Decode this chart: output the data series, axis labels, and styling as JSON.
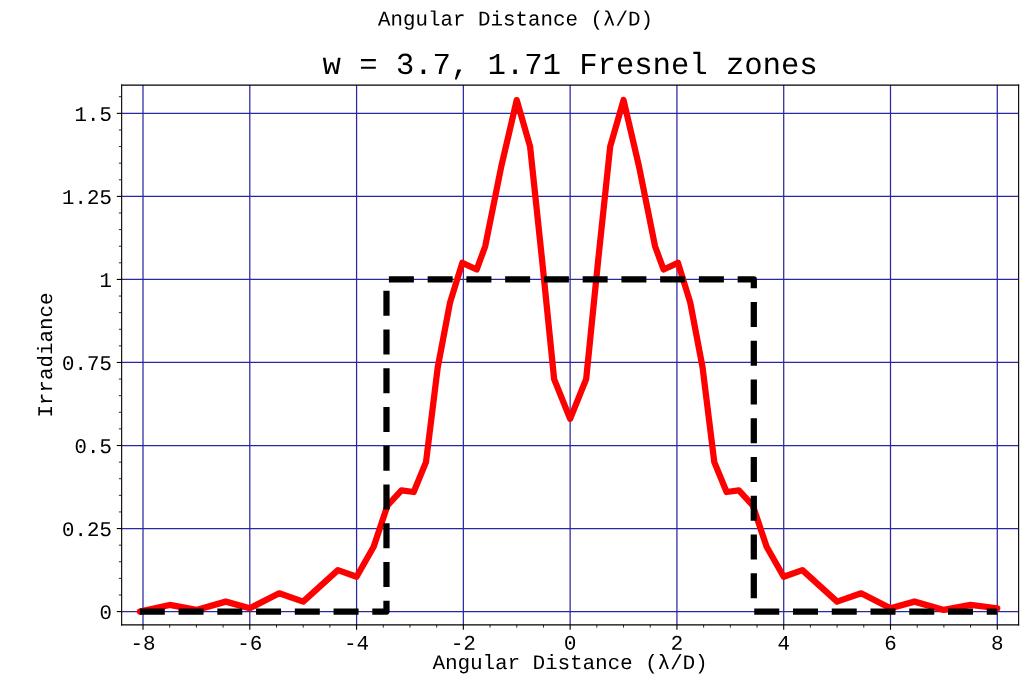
{
  "chart_data": {
    "type": "line",
    "title": "w = 3.7, 1.71 Fresnel zones",
    "xlabel": "Angular Distance (λ/D)",
    "ylabel": "Irradiance",
    "annotations": [
      "Angular Distance (λ/D)"
    ],
    "xlim": [
      -8.4,
      8.4
    ],
    "ylim": [
      -0.04,
      1.585
    ],
    "xticks": [
      -8,
      -6,
      -4,
      -2,
      0,
      2,
      4,
      6,
      8
    ],
    "yticks": [
      0,
      {
        "value": 0.25,
        "label": "0.25"
      },
      {
        "value": 0.5,
        "label": "0.5"
      },
      {
        "value": 0.75,
        "label": "0.75"
      },
      1,
      {
        "value": 1.25,
        "label": "1.25"
      },
      {
        "value": 1.5,
        "label": "1.5"
      }
    ],
    "grid": true,
    "marker": "none",
    "series": [
      {
        "color": "#ff0000",
        "line_style": "solid",
        "x": [
          -8.06,
          -7.5,
          -7.0,
          -6.45,
          -6.0,
          -5.45,
          -5.0,
          -4.35,
          -4.0,
          -3.68,
          -3.42,
          -3.16,
          -2.93,
          -2.7,
          -2.48,
          -2.25,
          -2.02,
          -1.75,
          -1.59,
          -1.29,
          -1.0,
          -0.75,
          -0.52,
          -0.3,
          0,
          0.3,
          0.52,
          0.75,
          1.0,
          1.29,
          1.59,
          1.75,
          2.02,
          2.25,
          2.48,
          2.7,
          2.93,
          3.16,
          3.42,
          3.68,
          4.0,
          4.35,
          5.0,
          5.45,
          6.0,
          6.45,
          7.0,
          7.5,
          8.0
        ],
        "values": [
          0.0,
          0.02,
          0.005,
          0.03,
          0.01,
          0.055,
          0.03,
          0.125,
          0.105,
          0.195,
          0.32,
          0.365,
          0.36,
          0.45,
          0.735,
          0.93,
          1.05,
          1.03,
          1.1,
          1.34,
          1.54,
          1.4,
          1.05,
          0.7,
          0.58,
          0.7,
          1.05,
          1.4,
          1.54,
          1.34,
          1.1,
          1.03,
          1.05,
          0.93,
          0.735,
          0.45,
          0.36,
          0.365,
          0.32,
          0.195,
          0.105,
          0.125,
          0.03,
          0.055,
          0.01,
          0.03,
          0.005,
          0.02,
          0.01
        ]
      },
      {
        "color": "#000000",
        "line_style": "dashed",
        "x": [
          -8.06,
          -3.44,
          -3.44,
          3.44,
          3.44,
          8.0
        ],
        "values": [
          0,
          0,
          1,
          1,
          0,
          0
        ]
      }
    ]
  }
}
